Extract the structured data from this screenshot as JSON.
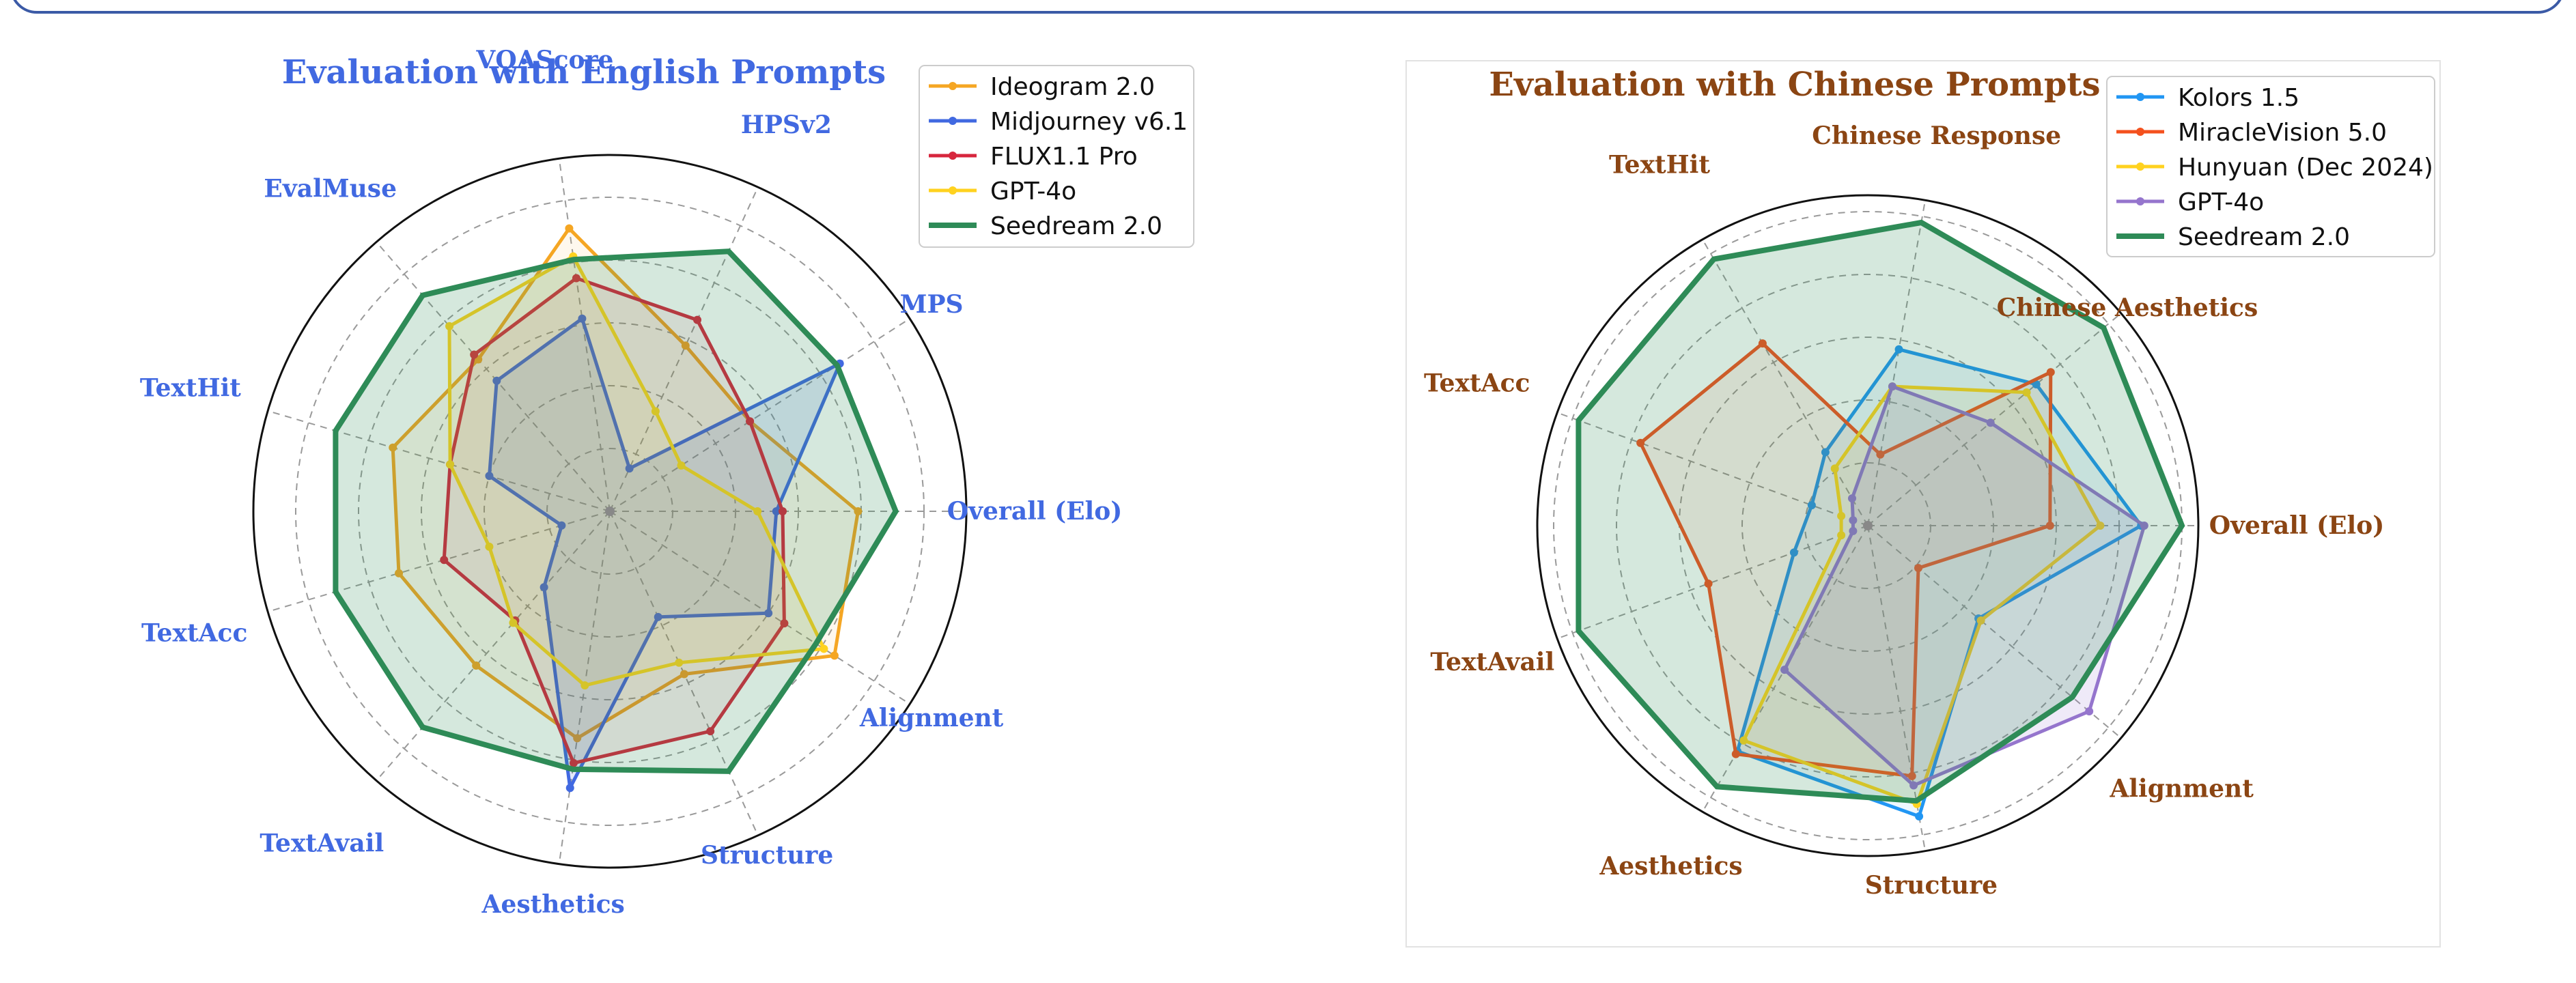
{
  "chart_data": [
    {
      "type": "radar",
      "title": "Evaluation with English Prompts",
      "title_color": "#4169e1",
      "label_color": "#4169e1",
      "axes": [
        "Overall (Elo)",
        "MPS",
        "HPSv2",
        "VQAScore",
        "EvalMuse",
        "TextHit",
        "TextAcc",
        "TextAvail",
        "Aesthetics",
        "Structure",
        "Alignment"
      ],
      "rlim": [
        0,
        1
      ],
      "grid": true,
      "legend_placement": "top-right",
      "series": [
        {
          "name": "Ideogram 2.0",
          "color": "#f5a623",
          "fill": false,
          "values": [
            0.79,
            0.53,
            0.58,
            0.91,
            0.64,
            0.72,
            0.7,
            0.65,
            0.73,
            0.57,
            0.85
          ]
        },
        {
          "name": "Midjourney v6.1",
          "color": "#4169e1",
          "fill": true,
          "values": [
            0.53,
            0.87,
            0.15,
            0.62,
            0.55,
            0.4,
            0.16,
            0.32,
            0.89,
            0.37,
            0.6
          ]
        },
        {
          "name": "FLUX1.1 Pro",
          "color": "#d7263d",
          "fill": false,
          "values": [
            0.55,
            0.53,
            0.67,
            0.75,
            0.66,
            0.53,
            0.55,
            0.46,
            0.81,
            0.77,
            0.66
          ]
        },
        {
          "name": "GPT-4o",
          "color": "#ffd21f",
          "fill": false,
          "values": [
            0.47,
            0.27,
            0.35,
            0.82,
            0.78,
            0.53,
            0.4,
            0.47,
            0.56,
            0.53,
            0.81
          ]
        },
        {
          "name": "Seedream 2.0",
          "color": "#2e8b57",
          "fill": true,
          "values": [
            0.91,
            0.86,
            0.91,
            0.81,
            0.91,
            0.91,
            0.91,
            0.91,
            0.83,
            0.91,
            0.78
          ]
        }
      ]
    },
    {
      "type": "radar",
      "title": "Evaluation with Chinese Prompts",
      "title_color": "#8b4513",
      "label_color": "#8b4513",
      "axes": [
        "Overall (Elo)",
        "Chinese Aesthetics",
        "Chinese Response",
        "TextHit",
        "TextAcc",
        "TextAvail",
        "Aesthetics",
        "Structure",
        "Alignment"
      ],
      "rlim": [
        0,
        1
      ],
      "grid": true,
      "legend_placement": "top-right",
      "series": [
        {
          "name": "Kolors 1.5",
          "color": "#2196f3",
          "fill": false,
          "values": [
            0.87,
            0.7,
            0.57,
            0.27,
            0.19,
            0.25,
            0.83,
            0.94,
            0.46
          ]
        },
        {
          "name": "MiracleVision 5.0",
          "color": "#f4511e",
          "fill": false,
          "values": [
            0.58,
            0.76,
            0.23,
            0.67,
            0.77,
            0.54,
            0.84,
            0.81,
            0.21
          ]
        },
        {
          "name": "Hunyuan (Dec 2024)",
          "color": "#ffd21f",
          "fill": false,
          "values": [
            0.74,
            0.66,
            0.45,
            0.21,
            0.09,
            0.09,
            0.79,
            0.9,
            0.47
          ]
        },
        {
          "name": "GPT-4o",
          "color": "#9575cd",
          "fill": true,
          "values": [
            0.88,
            0.51,
            0.45,
            0.1,
            0.05,
            0.05,
            0.53,
            0.84,
            0.92
          ]
        },
        {
          "name": "Seedream 2.0",
          "color": "#2e8b57",
          "fill": true,
          "values": [
            1.0,
            0.98,
            0.98,
            0.98,
            0.98,
            0.98,
            0.96,
            0.89,
            0.85
          ]
        }
      ]
    }
  ]
}
